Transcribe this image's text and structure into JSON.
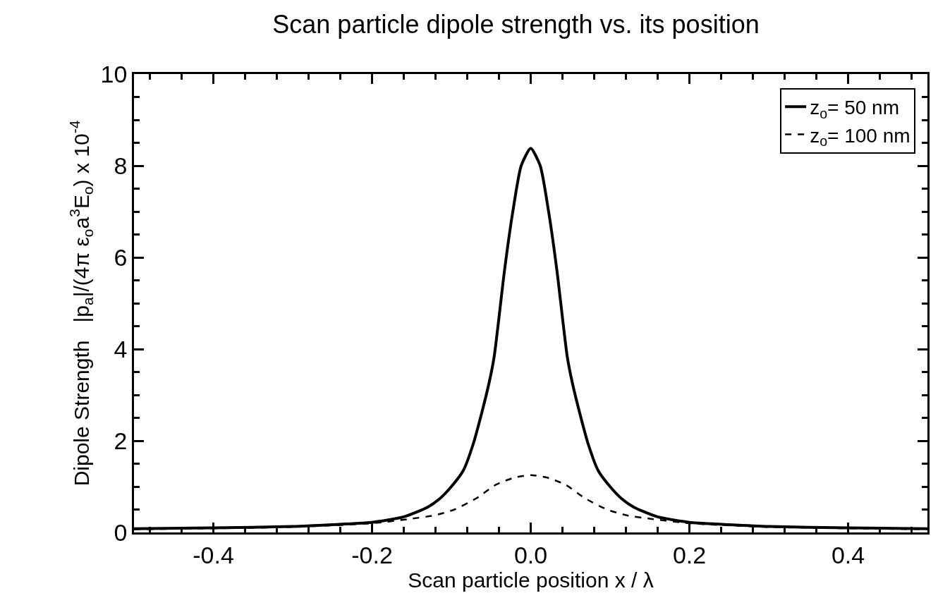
{
  "chart_data": {
    "type": "line",
    "title": "Scan particle dipole strength vs. its position",
    "xlabel": "Scan particle position x / λ",
    "ylabel": "Dipole Strength   |p$_{a}$|/(4π ε$_{o}$a$^{3}$E$_{o}$) x 10$^{-4}$",
    "series": [
      {
        "name": "z$_{o}$= 50 nm",
        "color": "#000000",
        "line_style": "solid",
        "x": [
          -0.5,
          -0.4,
          -0.3,
          -0.25,
          -0.2,
          -0.16,
          -0.13,
          -0.115,
          -0.1,
          -0.085,
          -0.073,
          -0.062,
          -0.052,
          -0.046,
          -0.033,
          -0.023,
          -0.012,
          0,
          0.012,
          0.023,
          0.033,
          0.046,
          0.052,
          0.062,
          0.073,
          0.085,
          0.1,
          0.115,
          0.13,
          0.16,
          0.2,
          0.25,
          0.3,
          0.4,
          0.5
        ],
        "values": [
          0.08,
          0.1,
          0.13,
          0.17,
          0.22,
          0.34,
          0.55,
          0.73,
          1.0,
          1.35,
          1.9,
          2.59,
          3.3,
          3.84,
          5.72,
          6.95,
          8.0,
          8.38,
          8.0,
          6.95,
          5.72,
          3.84,
          3.3,
          2.59,
          1.9,
          1.35,
          1.0,
          0.73,
          0.55,
          0.34,
          0.22,
          0.17,
          0.13,
          0.1,
          0.08
        ]
      },
      {
        "name": "z$_{o}$= 100 nm",
        "color": "#000000",
        "line_style": "dashed",
        "x": [
          -0.5,
          -0.4,
          -0.3,
          -0.2,
          -0.15,
          -0.122,
          -0.096,
          -0.068,
          -0.044,
          -0.02,
          0,
          0.02,
          0.044,
          0.068,
          0.096,
          0.122,
          0.15,
          0.2,
          0.3,
          0.4,
          0.5
        ],
        "values": [
          0.07,
          0.09,
          0.12,
          0.2,
          0.3,
          0.37,
          0.5,
          0.75,
          1.04,
          1.2,
          1.25,
          1.2,
          1.04,
          0.75,
          0.5,
          0.37,
          0.3,
          0.2,
          0.12,
          0.09,
          0.07
        ]
      }
    ],
    "xlim": [
      -0.5,
      0.5
    ],
    "xticks": [
      {
        "value": -0.48,
        "label": null
      },
      {
        "value": -0.44,
        "label": null
      },
      -0.4,
      {
        "value": -0.36,
        "label": null
      },
      {
        "value": -0.32,
        "label": null
      },
      {
        "value": -0.28,
        "label": null
      },
      {
        "value": -0.24,
        "label": null
      },
      -0.2,
      {
        "value": -0.16,
        "label": null
      },
      {
        "value": -0.12,
        "label": null
      },
      {
        "value": -0.08,
        "label": null
      },
      {
        "value": -0.04,
        "label": null
      },
      {
        "value": 0,
        "label": "0.0"
      },
      {
        "value": 0.04,
        "label": null
      },
      {
        "value": 0.08,
        "label": null
      },
      {
        "value": 0.12,
        "label": null
      },
      {
        "value": 0.16,
        "label": null
      },
      0.2,
      {
        "value": 0.24,
        "label": null
      },
      {
        "value": 0.28,
        "label": null
      },
      {
        "value": 0.32,
        "label": null
      },
      {
        "value": 0.36,
        "label": null
      },
      0.4,
      {
        "value": 0.44,
        "label": null
      },
      {
        "value": 0.48,
        "label": null
      }
    ],
    "ylim": [
      0,
      10
    ],
    "yticks": [
      0,
      {
        "value": 0.5,
        "label": null
      },
      {
        "value": 1,
        "label": null
      },
      {
        "value": 1.5,
        "label": null
      },
      2,
      {
        "value": 2.5,
        "label": null
      },
      {
        "value": 3,
        "label": null
      },
      {
        "value": 3.5,
        "label": null
      },
      4,
      {
        "value": 4.5,
        "label": null
      },
      {
        "value": 5,
        "label": null
      },
      {
        "value": 5.5,
        "label": null
      },
      6,
      {
        "value": 6.5,
        "label": null
      },
      {
        "value": 7,
        "label": null
      },
      {
        "value": 7.5,
        "label": null
      },
      8,
      {
        "value": 8.5,
        "label": null
      },
      {
        "value": 9,
        "label": null
      },
      {
        "value": 9.5,
        "label": null
      },
      10
    ],
    "legend": "top right",
    "marker": "none"
  }
}
